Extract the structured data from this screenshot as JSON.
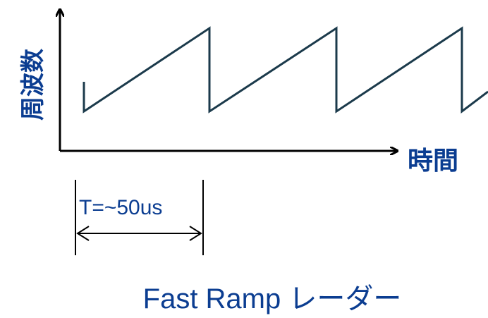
{
  "diagram": {
    "y_axis_label": "周波数",
    "x_axis_label": "時間",
    "period_label": "T=~50us",
    "caption": "Fast Ramp レーダー",
    "colors": {
      "waveform": "#1b3a4b",
      "labels": "#0b3d91",
      "axes": "#000000",
      "caption": "#0b3d91"
    }
  }
}
